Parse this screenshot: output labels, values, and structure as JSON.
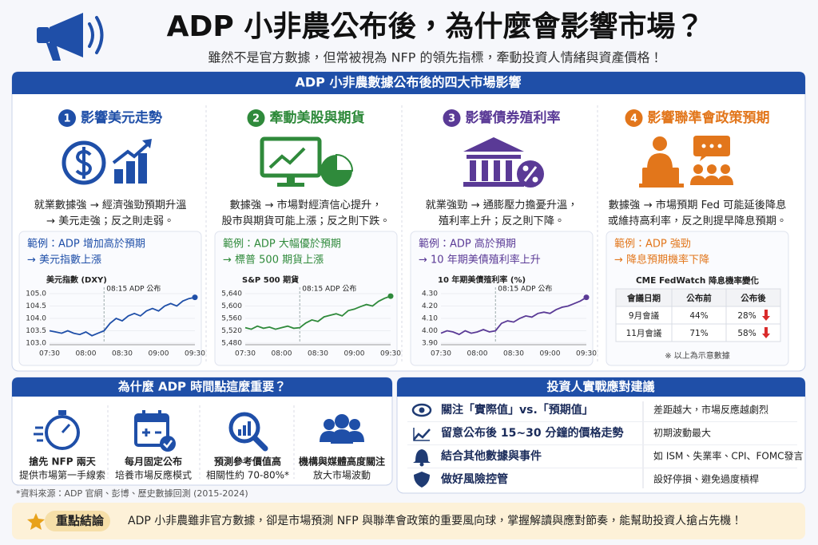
{
  "header": {
    "title": "ADP 小非農公布後，為什麼會影響市場？",
    "subtitle": "雖然不是官方數據，但常被視為 NFP 的領先指標，牽動投資人情緒與資產價格！"
  },
  "impacts": {
    "banner": "ADP 小非農數據公布後的四大市場影響",
    "cards": [
      {
        "number": "1",
        "title": "影響美元走勢",
        "color": "#1f4fa8",
        "description": [
          "就業數據強 → 經濟強勁預期升溫",
          "→ 美元走強；反之則走弱。"
        ],
        "example": [
          "範例：ADP 增加高於預期",
          "→ 美元指數上漲"
        ],
        "chart": {
          "type": "line",
          "title": "美元指數 (DXY)",
          "annotation": "08:15 ADP 公布",
          "xlabels": [
            "07:30",
            "08:00",
            "08:30",
            "09:00",
            "09:30"
          ],
          "ylim": [
            103,
            105
          ],
          "yticks": [
            {
              "value": 103,
              "label": "103.0"
            },
            {
              "value": 103.5,
              "label": "103.5"
            },
            {
              "value": 104,
              "label": "104.0"
            },
            {
              "value": 104.5,
              "label": "104.5"
            },
            {
              "value": 105,
              "label": "105.0"
            }
          ],
          "values": [
            103.5,
            103.45,
            103.4,
            103.5,
            103.4,
            103.35,
            103.45,
            103.3,
            103.4,
            103.5,
            103.8,
            104.0,
            103.9,
            104.1,
            104.2,
            104.1,
            104.3,
            104.4,
            104.3,
            104.5,
            104.6,
            104.5,
            104.7,
            104.8,
            104.85
          ]
        }
      },
      {
        "number": "2",
        "title": "牽動美股與期貨",
        "color": "#2f8a3b",
        "description": [
          "數據強 → 市場對經濟信心提升，",
          "股市與期貨可能上漲；反之則下跌。"
        ],
        "example": [
          "範例：ADP 大幅優於預期",
          "→ 標普 500 期貨上漲"
        ],
        "chart": {
          "type": "line",
          "title": "S&P 500 期貨",
          "annotation": "08:15 ADP 公布",
          "xlabels": [
            "07:30",
            "08:00",
            "08:30",
            "09:00",
            "09:30"
          ],
          "ylim": [
            5480,
            5640
          ],
          "yticks": [
            {
              "value": 5480,
              "label": "5,480"
            },
            {
              "value": 5520,
              "label": "5,520"
            },
            {
              "value": 5560,
              "label": "5,560"
            },
            {
              "value": 5600,
              "label": "5,600"
            },
            {
              "value": 5640,
              "label": "5,640"
            }
          ],
          "values": [
            5530,
            5525,
            5535,
            5528,
            5532,
            5525,
            5530,
            5535,
            5528,
            5530,
            5545,
            5555,
            5550,
            5565,
            5570,
            5575,
            5568,
            5585,
            5590,
            5598,
            5605,
            5600,
            5615,
            5625,
            5632
          ]
        }
      },
      {
        "number": "3",
        "title": "影響債券殖利率",
        "color": "#5a3a96",
        "description": [
          "就業強勁 → 通膨壓力擔憂升溫，",
          "殖利率上升；反之則下降。"
        ],
        "example": [
          "範例：ADP 高於預期",
          "→ 10 年期美債殖利率上升"
        ],
        "chart": {
          "type": "line",
          "title": "10 年期美債殖利率 (%)",
          "annotation": "08:15 ADP 公布",
          "xlabels": [
            "07:30",
            "08:00",
            "08:30",
            "09:00",
            "09:30"
          ],
          "ylim": [
            3.9,
            4.3
          ],
          "yticks": [
            {
              "value": 3.9,
              "label": "3.90"
            },
            {
              "value": 4.0,
              "label": "4.00"
            },
            {
              "value": 4.1,
              "label": "4.10"
            },
            {
              "value": 4.2,
              "label": "4.20"
            },
            {
              "value": 4.3,
              "label": "4.30"
            }
          ],
          "values": [
            3.98,
            4.0,
            3.99,
            3.97,
            4.0,
            3.98,
            3.99,
            4.01,
            3.99,
            4.0,
            4.06,
            4.08,
            4.07,
            4.1,
            4.12,
            4.11,
            4.14,
            4.15,
            4.14,
            4.17,
            4.19,
            4.2,
            4.22,
            4.24,
            4.27
          ]
        }
      },
      {
        "number": "4",
        "title": "影響聯準會政策預期",
        "color": "#e2761b",
        "description": [
          "數據強 → 市場預期 Fed 可能延後降息",
          "或維持高利率，反之則提早降息預期。"
        ],
        "example": [
          "範例：ADP 強勁",
          "→ 降息預期機率下降"
        ],
        "table": {
          "title": "CME FedWatch 降息機率變化",
          "header": [
            "會議日期",
            "公布前",
            "公布後"
          ],
          "rows": [
            [
              "9月會議",
              "44%",
              "28%"
            ],
            [
              "11月會議",
              "71%",
              "58%"
            ]
          ],
          "note": "※ 以上為示意數據"
        }
      }
    ]
  },
  "timing": {
    "banner": "為什麼 ADP 時間點這麼重要？",
    "items": [
      [
        "搶先 NFP 兩天",
        "提供市場第一手線索"
      ],
      [
        "每月固定公布",
        "培養市場反應模式"
      ],
      [
        "預測參考價值高",
        "相關性約 70-80%*"
      ],
      [
        "機構與媒體高度關注",
        "放大市場波動"
      ]
    ],
    "source": "*資料來源：ADP 官網、彭博、歷史數據回測 (2015-2024)"
  },
  "advice": {
    "banner": "投資人實戰應對建議",
    "rows": [
      [
        "關注「實際值」vs.「預期值」",
        "差距越大，市場反應越劇烈"
      ],
      [
        "留意公布後 15~30 分鐘的價格走勢",
        "初期波動最大"
      ],
      [
        "結合其他數據與事件",
        "如 ISM、失業率、CPI、FOMC發言"
      ],
      [
        "做好風險控管",
        "設好停損、避免過度槓桿"
      ]
    ]
  },
  "conclusion": {
    "label": "重點結論",
    "text": "ADP 小非農雖非官方數據，卻是市場預測 NFP 與聯準會政策的重要風向球，掌握解讀與應對節奏，能幫助投資人搶占先機！"
  }
}
